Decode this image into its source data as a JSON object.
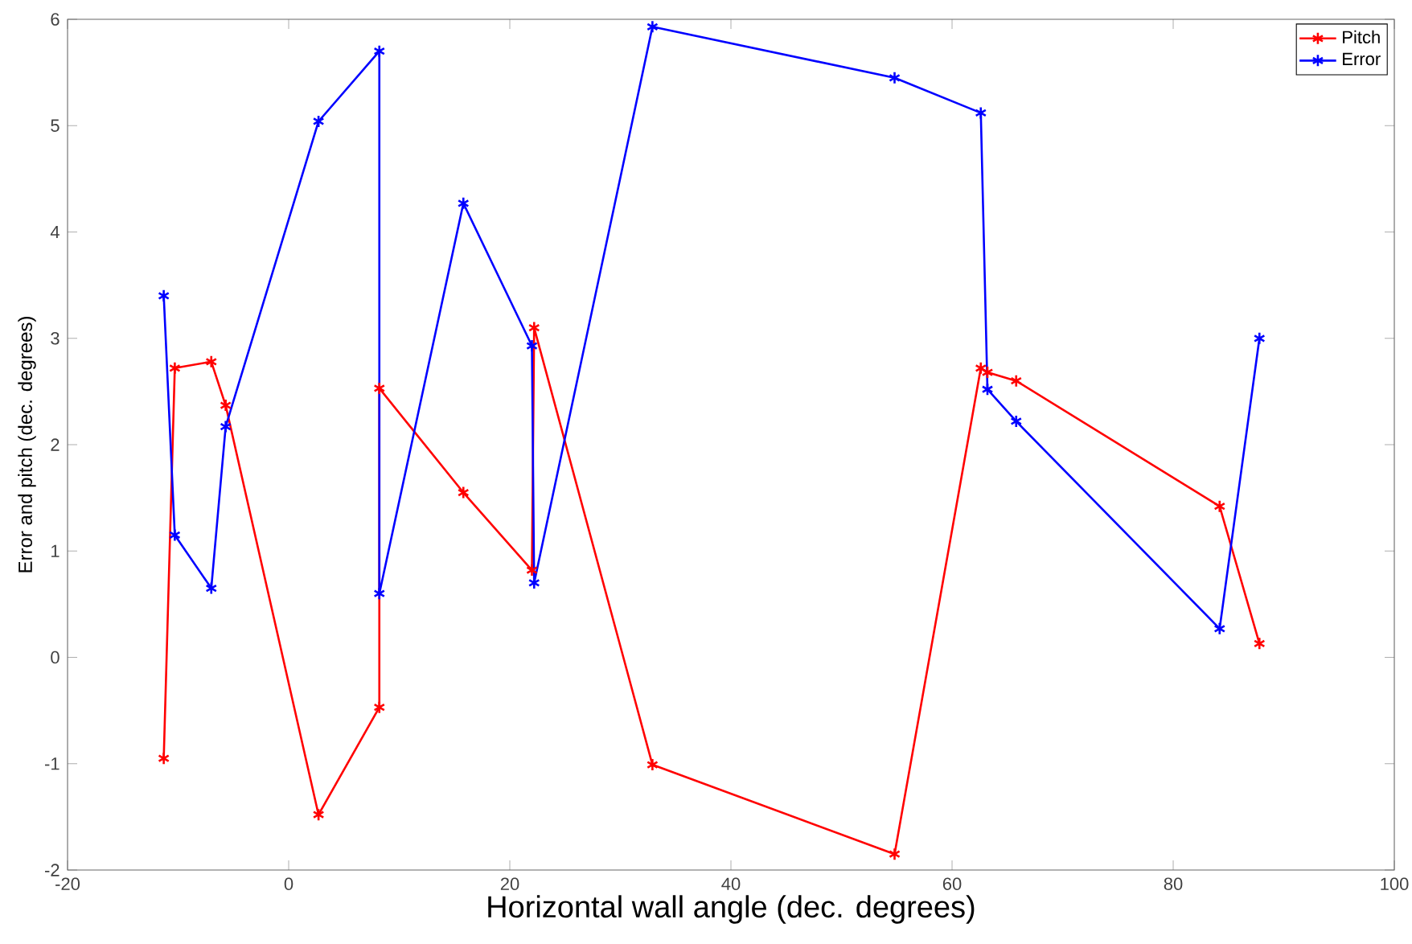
{
  "chart_data": {
    "type": "line",
    "xlabel": "Horizontal wall angle (dec. degrees)",
    "ylabel": "Error and pitch (dec. degrees)",
    "x": [
      -11.3,
      -10.3,
      -7,
      -5.7,
      2.7,
      8.2,
      8.2,
      15.8,
      22,
      22.2,
      32.9,
      54.8,
      62.6,
      63.2,
      65.8,
      84.2,
      87.8
    ],
    "series": [
      {
        "name": "Pitch",
        "color": "#ff0000",
        "values": [
          -0.95,
          2.72,
          2.78,
          2.37,
          -1.48,
          -0.47,
          2.53,
          1.55,
          0.82,
          3.1,
          -1.01,
          -1.85,
          2.72,
          2.68,
          2.6,
          1.42,
          0.13
        ]
      },
      {
        "name": "Error",
        "color": "#0000ff",
        "values": [
          3.4,
          1.15,
          0.65,
          2.17,
          5.04,
          5.7,
          0.6,
          4.27,
          2.93,
          0.7,
          5.93,
          5.45,
          5.12,
          2.52,
          2.22,
          0.27,
          3.0
        ]
      }
    ],
    "xlim": [
      -20,
      100
    ],
    "ylim": [
      -2,
      6
    ],
    "xticks": [
      -20,
      0,
      20,
      40,
      60,
      80,
      100
    ],
    "yticks": [
      -2,
      -1,
      0,
      1,
      2,
      3,
      4,
      5,
      6
    ],
    "legend": "top right",
    "marker": "cross",
    "line_style": "solid",
    "grid": false
  }
}
